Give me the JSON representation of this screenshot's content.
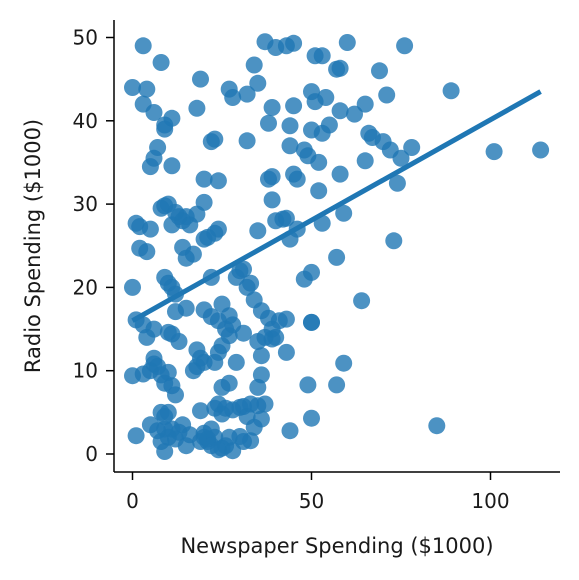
{
  "chart_data": {
    "type": "scatter",
    "title": "",
    "xlabel": "Newspaper Spending ($1000)",
    "ylabel": "Radio Spending ($1000)",
    "xlim": [
      -5,
      120
    ],
    "ylim": [
      -2.5,
      52
    ],
    "xticks": [
      0,
      50,
      100
    ],
    "yticks": [
      0,
      10,
      20,
      30,
      40,
      50
    ],
    "grid": false,
    "legend": "none",
    "color": "#1f77b4",
    "regression_line": {
      "x": [
        0,
        114
      ],
      "y": [
        16.0,
        43.5
      ]
    },
    "series": [
      {
        "points": [
          [
            3,
            49
          ],
          [
            8,
            47
          ],
          [
            19,
            45
          ],
          [
            37,
            49.5
          ],
          [
            40,
            48.8
          ],
          [
            43,
            49
          ],
          [
            45,
            49.3
          ],
          [
            51,
            47.8
          ],
          [
            53,
            47.8
          ],
          [
            57,
            46.2
          ],
          [
            60,
            49.4
          ],
          [
            76,
            49
          ],
          [
            58,
            46.3
          ],
          [
            69,
            46
          ],
          [
            0,
            44
          ],
          [
            4,
            43.8
          ],
          [
            3,
            42
          ],
          [
            6,
            41
          ],
          [
            11,
            40.3
          ],
          [
            9,
            39.5
          ],
          [
            9,
            39
          ],
          [
            7,
            36.8
          ],
          [
            6,
            35.5
          ],
          [
            5,
            34.5
          ],
          [
            18,
            41.5
          ],
          [
            27,
            43.8
          ],
          [
            28,
            42.8
          ],
          [
            32,
            43.2
          ],
          [
            34,
            46.7
          ],
          [
            35,
            44.5
          ],
          [
            38,
            39.7
          ],
          [
            39,
            41.6
          ],
          [
            22,
            37.5
          ],
          [
            23,
            37.8
          ],
          [
            32,
            37.6
          ],
          [
            44,
            39.4
          ],
          [
            45,
            41.8
          ],
          [
            44,
            37
          ],
          [
            48,
            36.5
          ],
          [
            49,
            35.8
          ],
          [
            52,
            35
          ],
          [
            50,
            38.9
          ],
          [
            53,
            38.5
          ],
          [
            50,
            43.5
          ],
          [
            51,
            42.3
          ],
          [
            54,
            42.8
          ],
          [
            55,
            39.5
          ],
          [
            58,
            41.2
          ],
          [
            62,
            40.8
          ],
          [
            65,
            42
          ],
          [
            66,
            38.5
          ],
          [
            67,
            38
          ],
          [
            70,
            37.5
          ],
          [
            72,
            36.5
          ],
          [
            71,
            43.1
          ],
          [
            75,
            35.5
          ],
          [
            78,
            36.8
          ],
          [
            74,
            32.5
          ],
          [
            89,
            43.6
          ],
          [
            101,
            36.3
          ],
          [
            114,
            36.5
          ],
          [
            65,
            35.2
          ],
          [
            58,
            33.6
          ],
          [
            52,
            31.6
          ],
          [
            45,
            33.6
          ],
          [
            46,
            33
          ],
          [
            39,
            33.3
          ],
          [
            38,
            33
          ],
          [
            39,
            30.5
          ],
          [
            20,
            33
          ],
          [
            24,
            32.8
          ],
          [
            11,
            34.6
          ],
          [
            1,
            27.7
          ],
          [
            2,
            27.3
          ],
          [
            5,
            27
          ],
          [
            8,
            29.5
          ],
          [
            9,
            29.8
          ],
          [
            10,
            30
          ],
          [
            11,
            27.5
          ],
          [
            12,
            29
          ],
          [
            13,
            28.5
          ],
          [
            14,
            28
          ],
          [
            15,
            28.5
          ],
          [
            16,
            27.5
          ],
          [
            18,
            28.8
          ],
          [
            20,
            30.2
          ],
          [
            23,
            26.5
          ],
          [
            24,
            27
          ],
          [
            20,
            25.8
          ],
          [
            21,
            26
          ],
          [
            17,
            24
          ],
          [
            14,
            24.8
          ],
          [
            15,
            23.5
          ],
          [
            2,
            24.7
          ],
          [
            4,
            24.3
          ],
          [
            35,
            26.8
          ],
          [
            42,
            28.2
          ],
          [
            43,
            28.3
          ],
          [
            44,
            25.8
          ],
          [
            40,
            28
          ],
          [
            46,
            27
          ],
          [
            48,
            21
          ],
          [
            50,
            21.8
          ],
          [
            53,
            27.7
          ],
          [
            57,
            23.6
          ],
          [
            59,
            28.9
          ],
          [
            73,
            25.6
          ],
          [
            0,
            20
          ],
          [
            9,
            21.2
          ],
          [
            10,
            20.5
          ],
          [
            11,
            20
          ],
          [
            12,
            19.2
          ],
          [
            15,
            17.5
          ],
          [
            20,
            17.3
          ],
          [
            22,
            21.2
          ],
          [
            25,
            18
          ],
          [
            27,
            16.6
          ],
          [
            29,
            21.2
          ],
          [
            30,
            22
          ],
          [
            31,
            22.2
          ],
          [
            32,
            20
          ],
          [
            33,
            20.5
          ],
          [
            34,
            18.5
          ],
          [
            36,
            17.2
          ],
          [
            38,
            16.3
          ],
          [
            39,
            15
          ],
          [
            40,
            14
          ],
          [
            41,
            16
          ],
          [
            43,
            16.2
          ],
          [
            50,
            15.8
          ],
          [
            50,
            15.8
          ],
          [
            64,
            18.4
          ],
          [
            12,
            17.1
          ],
          [
            1,
            16.1
          ],
          [
            3,
            15.5
          ],
          [
            4,
            14
          ],
          [
            6,
            15
          ],
          [
            10,
            14.6
          ],
          [
            11,
            14.4
          ],
          [
            13,
            13.5
          ],
          [
            18,
            12.5
          ],
          [
            19,
            11.5
          ],
          [
            20,
            11
          ],
          [
            22,
            16.5
          ],
          [
            24,
            16
          ],
          [
            24,
            12.2
          ],
          [
            25,
            13
          ],
          [
            26,
            15
          ],
          [
            27,
            14.2
          ],
          [
            28,
            15.5
          ],
          [
            29,
            11
          ],
          [
            31,
            14.5
          ],
          [
            35,
            13.5
          ],
          [
            36,
            11.8
          ],
          [
            37,
            14
          ],
          [
            39,
            13.8
          ],
          [
            43,
            12.2
          ],
          [
            0,
            9.4
          ],
          [
            3,
            9.6
          ],
          [
            5,
            10
          ],
          [
            6,
            11.5
          ],
          [
            6,
            10.8
          ],
          [
            7,
            10.5
          ],
          [
            8,
            9.5
          ],
          [
            9,
            8.5
          ],
          [
            10,
            9.8
          ],
          [
            11,
            8.2
          ],
          [
            17,
            10
          ],
          [
            18,
            10.5
          ],
          [
            23,
            11
          ],
          [
            25,
            8
          ],
          [
            27,
            8.5
          ],
          [
            35,
            8
          ],
          [
            36,
            9.5
          ],
          [
            49,
            8.3
          ],
          [
            57,
            8.3
          ],
          [
            59,
            10.9
          ],
          [
            8,
            5
          ],
          [
            9,
            4.5
          ],
          [
            10,
            5
          ],
          [
            9,
            3
          ],
          [
            12,
            7.1
          ],
          [
            13,
            2.6
          ],
          [
            14,
            3.5
          ],
          [
            15,
            1
          ],
          [
            16,
            2.3
          ],
          [
            19,
            5.2
          ],
          [
            20,
            2
          ],
          [
            21,
            1.5
          ],
          [
            22,
            3
          ],
          [
            23,
            5.5
          ],
          [
            24,
            6
          ],
          [
            25,
            4.8
          ],
          [
            26,
            5.5
          ],
          [
            28,
            5.3
          ],
          [
            30,
            5.6
          ],
          [
            31,
            5.7
          ],
          [
            32,
            4.5
          ],
          [
            33,
            6
          ],
          [
            34,
            3.2
          ],
          [
            35,
            5.8
          ],
          [
            36,
            4.2
          ],
          [
            37,
            6
          ],
          [
            44,
            2.8
          ],
          [
            50,
            4.3
          ],
          [
            85,
            3.4
          ],
          [
            1,
            2.2
          ],
          [
            5,
            3.5
          ],
          [
            7,
            2.8
          ],
          [
            8,
            1.5
          ],
          [
            9,
            0.3
          ],
          [
            10,
            2
          ],
          [
            11,
            3
          ],
          [
            12,
            1.8
          ],
          [
            19,
            1.5
          ],
          [
            20,
            2.5
          ],
          [
            21,
            1.8
          ],
          [
            22,
            1
          ],
          [
            23,
            2
          ],
          [
            24,
            0.5
          ],
          [
            25,
            0.7
          ],
          [
            26,
            1
          ],
          [
            27,
            2
          ],
          [
            28,
            0.4
          ],
          [
            30,
            2.1
          ],
          [
            31,
            1.5
          ],
          [
            33,
            1.6
          ]
        ]
      }
    ]
  }
}
